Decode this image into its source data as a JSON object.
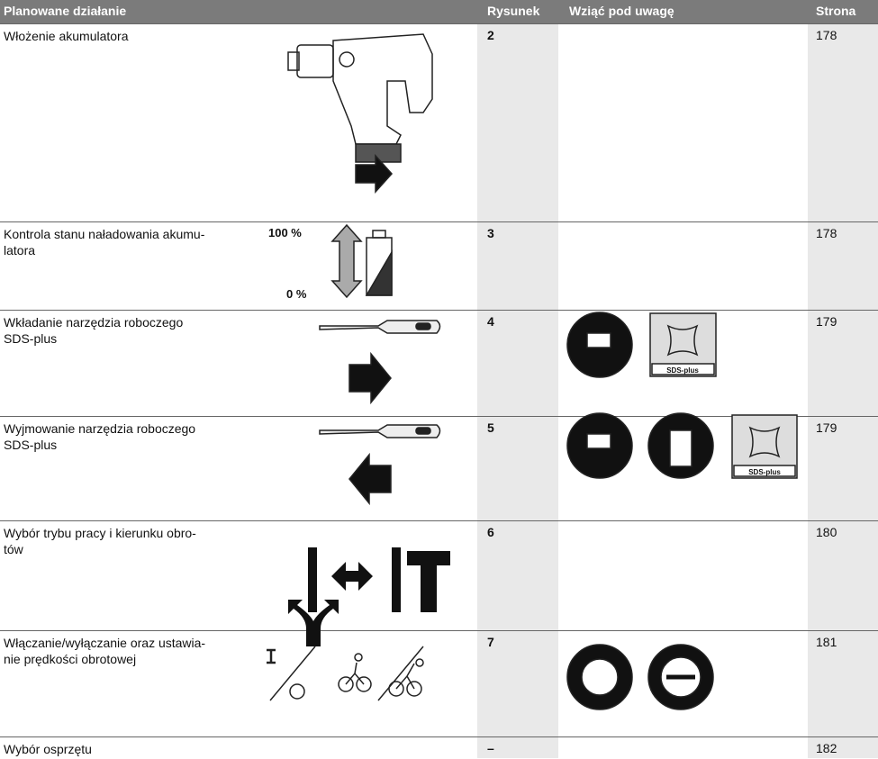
{
  "header": {
    "columns": [
      "Planowane działanie",
      "Rysunek",
      "Wziąć pod uwagę",
      "Strona"
    ]
  },
  "rows": [
    {
      "action": [
        "Włożenie akumulatora"
      ],
      "figure": "2",
      "page": "178"
    },
    {
      "action": [
        "Kontrola stanu naładowania akumu-",
        "latora"
      ],
      "figure": "3",
      "page": "178"
    },
    {
      "action": [
        "Wkładanie narzędzia roboczego",
        "SDS-plus"
      ],
      "figure": "4",
      "page": "179"
    },
    {
      "action": [
        "Wyjmowanie narzędzia roboczego",
        "SDS-plus"
      ],
      "figure": "5",
      "page": "179"
    },
    {
      "action": [
        "Wybór trybu pracy i kierunku obro-",
        "tów"
      ],
      "figure": "6",
      "page": "180"
    },
    {
      "action": [
        "Włączanie/wyłączanie oraz ustawia-",
        "nie prędkości obrotowej"
      ],
      "figure": "7",
      "page": "181"
    },
    {
      "action": [
        "Wybór osprzętu"
      ],
      "figure": "–",
      "page": "182"
    }
  ],
  "icons": {
    "battery_top": "100 %",
    "battery_bottom": "0 %",
    "sds_label": "SDS-plus"
  }
}
